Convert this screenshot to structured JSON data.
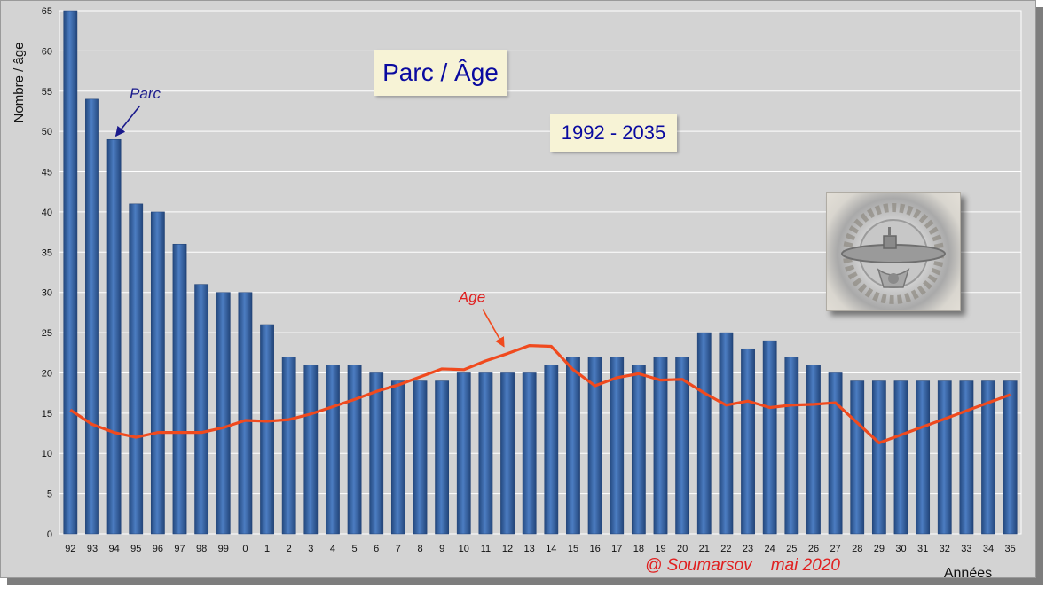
{
  "chart_data": {
    "type": "bar",
    "title": "Parc / Âge",
    "subtitle": "1992 - 2035",
    "ylabel": "Nombre / âge",
    "xlabel": "Années",
    "ylim": [
      0,
      65
    ],
    "yticks": [
      0,
      5,
      10,
      15,
      20,
      25,
      30,
      35,
      40,
      45,
      50,
      55,
      60,
      65
    ],
    "grid": true,
    "categories": [
      "92",
      "93",
      "94",
      "95",
      "96",
      "97",
      "98",
      "99",
      "0",
      "1",
      "2",
      "3",
      "4",
      "5",
      "6",
      "7",
      "8",
      "9",
      "10",
      "11",
      "12",
      "13",
      "14",
      "15",
      "16",
      "17",
      "18",
      "19",
      "20",
      "21",
      "22",
      "23",
      "24",
      "25",
      "26",
      "27",
      "28",
      "29",
      "30",
      "31",
      "32",
      "33",
      "34",
      "35"
    ],
    "series": [
      {
        "name": "Parc",
        "type": "bar",
        "color": "#3a66a8",
        "values": [
          65,
          54,
          49,
          41,
          40,
          36,
          31,
          30,
          30,
          26,
          22,
          21,
          21,
          21,
          20,
          19,
          19,
          19,
          20,
          20,
          20,
          20,
          21,
          22,
          22,
          22,
          21,
          22,
          22,
          25,
          25,
          23,
          24,
          22,
          21,
          20,
          19,
          19,
          19,
          19,
          19,
          19,
          19,
          19
        ]
      },
      {
        "name": "Age",
        "type": "line",
        "color": "#f04a1e",
        "values": [
          15.4,
          13.6,
          12.6,
          12.0,
          12.6,
          12.6,
          12.6,
          13.2,
          14.1,
          14.0,
          14.2,
          14.9,
          15.8,
          16.7,
          17.7,
          18.5,
          19.5,
          20.5,
          20.4,
          21.5,
          22.4,
          23.4,
          23.3,
          20.4,
          18.4,
          19.4,
          19.9,
          19.1,
          19.2,
          17.5,
          16.0,
          16.5,
          15.7,
          16.0,
          16.1,
          16.3,
          13.8,
          11.3,
          12.3,
          13.3,
          14.3,
          15.3,
          16.3,
          17.3
        ]
      }
    ],
    "annotations": [
      {
        "text": "Parc",
        "color": "#1a1a8c",
        "points_to": {
          "category": "94",
          "value": 49
        }
      },
      {
        "text": "Age",
        "color": "#e02020",
        "points_to": {
          "category": "12",
          "value": 22.4
        }
      }
    ]
  },
  "credit": "@ Soumarsov    mai 2020",
  "emblem_icon": "submarine-badge-icon"
}
